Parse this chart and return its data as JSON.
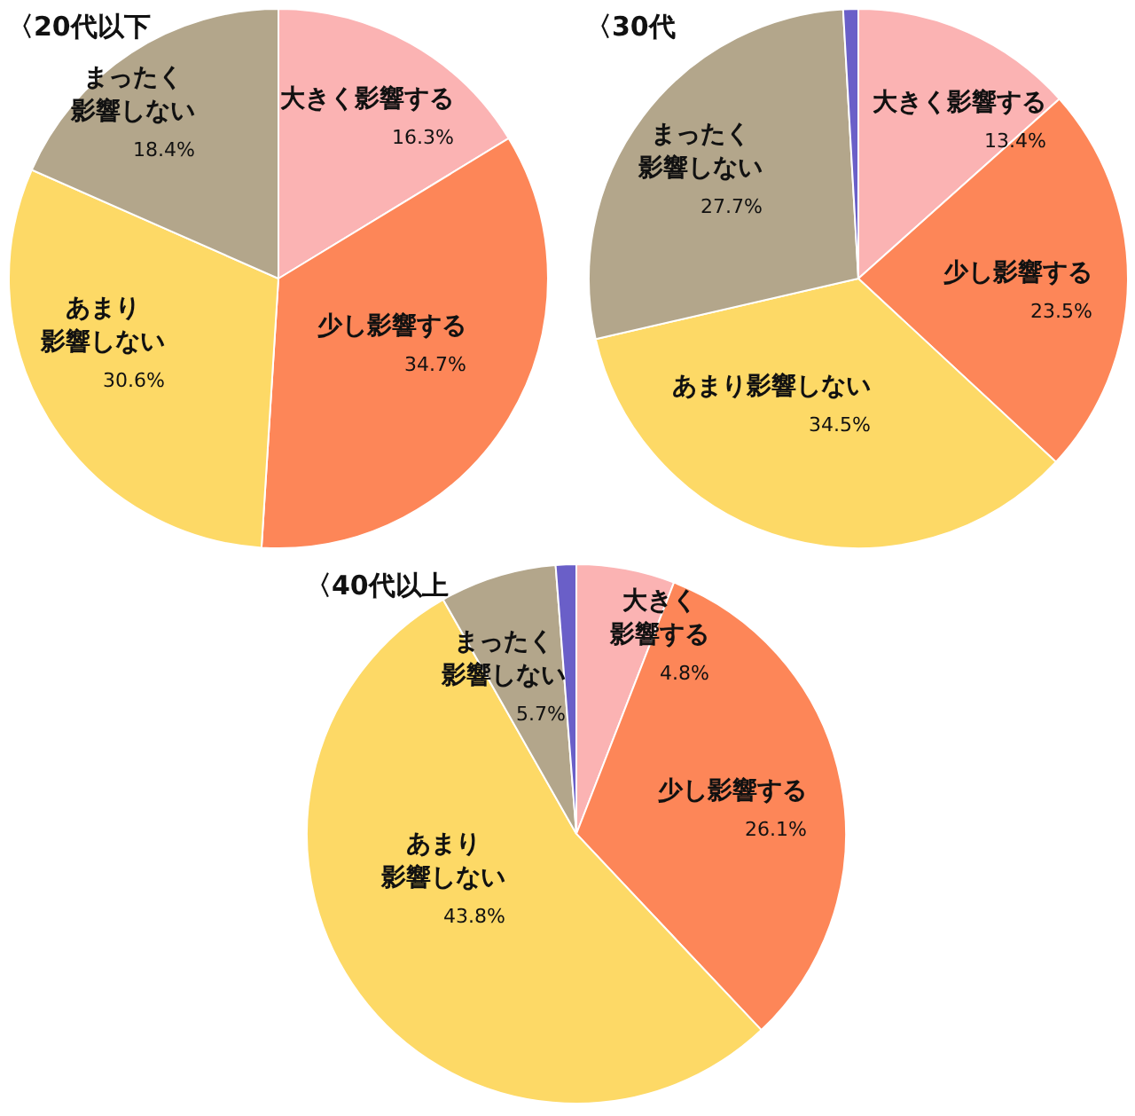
{
  "chart_data": [
    {
      "type": "pie",
      "title": "〈20代以下",
      "categories": [
        "大きく影響する",
        "少し影響する",
        "あまり影響しない",
        "まったく影響しない"
      ],
      "values": [
        16.3,
        34.7,
        30.6,
        18.4
      ],
      "value_labels": [
        "16.3%",
        "34.7%",
        "30.6%",
        "18.4%"
      ],
      "colors": [
        "#fbb3b3",
        "#fd8658",
        "#fdd966",
        "#b3a68b"
      ]
    },
    {
      "type": "pie",
      "title": "〈30代",
      "categories": [
        "大きく影響する",
        "少し影響する",
        "あまり影響しない",
        "まったく影響しない",
        null
      ],
      "values": [
        13.4,
        23.5,
        34.5,
        27.7,
        0.9
      ],
      "value_labels": [
        "13.4%",
        "23.5%",
        "34.5%",
        "27.7%",
        null
      ],
      "colors": [
        "#fbb3b3",
        "#fd8658",
        "#fdd966",
        "#b3a68b",
        "#6a5fc8"
      ]
    },
    {
      "type": "pie",
      "title": "〈40代以上",
      "categories": [
        "大きく影響する",
        "少し影響する",
        "あまり影響しない",
        "まったく影響しない",
        null
      ],
      "values": [
        4.8,
        26.1,
        43.8,
        5.7,
        1.0
      ],
      "value_labels": [
        "4.8%",
        "26.1%",
        "43.8%",
        "5.7%",
        null
      ],
      "colors": [
        "#fbb3b3",
        "#fd8658",
        "#fdd966",
        "#b3a68b",
        "#6a5fc8"
      ]
    }
  ]
}
